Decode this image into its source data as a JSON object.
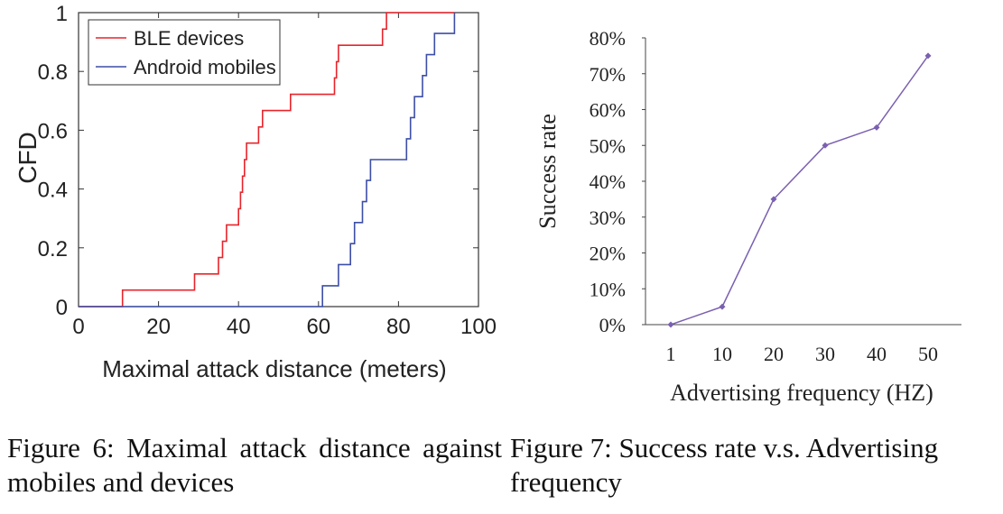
{
  "chart_data": [
    {
      "type": "line",
      "style": "step",
      "title": "",
      "xlabel": "Maximal attack distance (meters)",
      "ylabel": "CFD",
      "xlim": [
        0,
        100
      ],
      "ylim": [
        0,
        1
      ],
      "xticks": [
        "0",
        "20",
        "40",
        "60",
        "80",
        "100"
      ],
      "yticks": [
        "0",
        "0.2",
        "0.4",
        "0.6",
        "0.8",
        "1"
      ],
      "grid": false,
      "legend_position": "top-left",
      "series": [
        {
          "name": "BLE devices",
          "color": "#e8242b",
          "points": [
            [
              0,
              0
            ],
            [
              11,
              0
            ],
            [
              11,
              0.056
            ],
            [
              29,
              0.056
            ],
            [
              29,
              0.111
            ],
            [
              35,
              0.111
            ],
            [
              35,
              0.167
            ],
            [
              36,
              0.167
            ],
            [
              36,
              0.222
            ],
            [
              37,
              0.222
            ],
            [
              37,
              0.278
            ],
            [
              40,
              0.278
            ],
            [
              40,
              0.333
            ],
            [
              40.5,
              0.333
            ],
            [
              40.5,
              0.389
            ],
            [
              41,
              0.389
            ],
            [
              41,
              0.444
            ],
            [
              41.5,
              0.444
            ],
            [
              41.5,
              0.5
            ],
            [
              42,
              0.5
            ],
            [
              42,
              0.556
            ],
            [
              45,
              0.556
            ],
            [
              45,
              0.611
            ],
            [
              46,
              0.611
            ],
            [
              46,
              0.667
            ],
            [
              53,
              0.667
            ],
            [
              53,
              0.722
            ],
            [
              64,
              0.722
            ],
            [
              64,
              0.778
            ],
            [
              64.5,
              0.778
            ],
            [
              64.5,
              0.833
            ],
            [
              65,
              0.833
            ],
            [
              65,
              0.889
            ],
            [
              76,
              0.889
            ],
            [
              76,
              0.944
            ],
            [
              77,
              0.944
            ],
            [
              77,
              1.0
            ],
            [
              94,
              1.0
            ]
          ]
        },
        {
          "name": "Android mobiles",
          "color": "#3d4ea6",
          "points": [
            [
              0,
              0
            ],
            [
              61,
              0
            ],
            [
              61,
              0.071
            ],
            [
              65,
              0.071
            ],
            [
              65,
              0.143
            ],
            [
              68,
              0.143
            ],
            [
              68,
              0.214
            ],
            [
              69,
              0.214
            ],
            [
              69,
              0.286
            ],
            [
              71,
              0.286
            ],
            [
              71,
              0.357
            ],
            [
              72,
              0.357
            ],
            [
              72,
              0.429
            ],
            [
              73,
              0.429
            ],
            [
              73,
              0.5
            ],
            [
              82,
              0.5
            ],
            [
              82,
              0.571
            ],
            [
              83,
              0.571
            ],
            [
              83,
              0.643
            ],
            [
              84,
              0.643
            ],
            [
              84,
              0.714
            ],
            [
              86,
              0.714
            ],
            [
              86,
              0.786
            ],
            [
              87,
              0.786
            ],
            [
              87,
              0.857
            ],
            [
              89,
              0.857
            ],
            [
              89,
              0.929
            ],
            [
              94,
              0.929
            ],
            [
              94,
              1.0
            ]
          ]
        }
      ]
    },
    {
      "type": "line",
      "title": "",
      "xlabel": "Advertising frequency (HZ)",
      "ylabel": "Success rate",
      "categories": [
        "1",
        "10",
        "20",
        "30",
        "40",
        "50"
      ],
      "yticks": [
        "0%",
        "10%",
        "20%",
        "30%",
        "40%",
        "50%",
        "60%",
        "70%",
        "80%"
      ],
      "ylim": [
        0,
        80
      ],
      "grid": false,
      "series": [
        {
          "color": "#7a60b0",
          "marker": "diamond",
          "values": [
            0,
            5,
            35,
            50,
            55,
            75
          ]
        }
      ]
    }
  ],
  "captions": {
    "fig6": "Figure 6:  Maximal attack distance against mobiles and devices",
    "fig7": "Figure 7: Success rate v.s. Advertising frequency"
  }
}
